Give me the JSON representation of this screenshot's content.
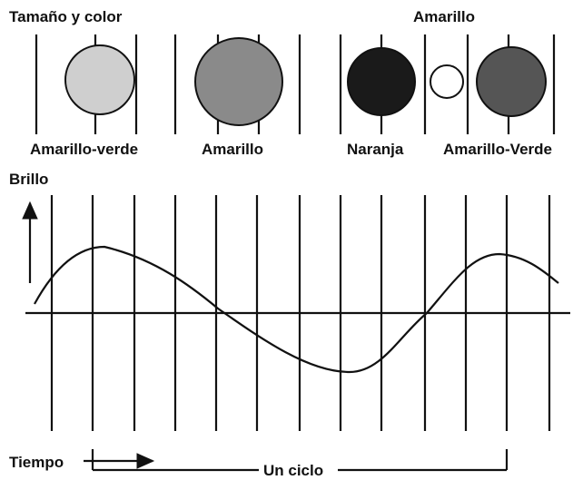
{
  "header": {
    "title": "Tamaño y color",
    "top_label": "Amarillo"
  },
  "stars": [
    {
      "label": "Amarillo-verde"
    },
    {
      "label": "Amarillo"
    },
    {
      "label": "Naranja"
    },
    {
      "label": "Amarillo-Verde"
    }
  ],
  "graph": {
    "y_label": "Brillo",
    "x_label": "Tiempo",
    "cycle_label": "Un ciclo"
  }
}
